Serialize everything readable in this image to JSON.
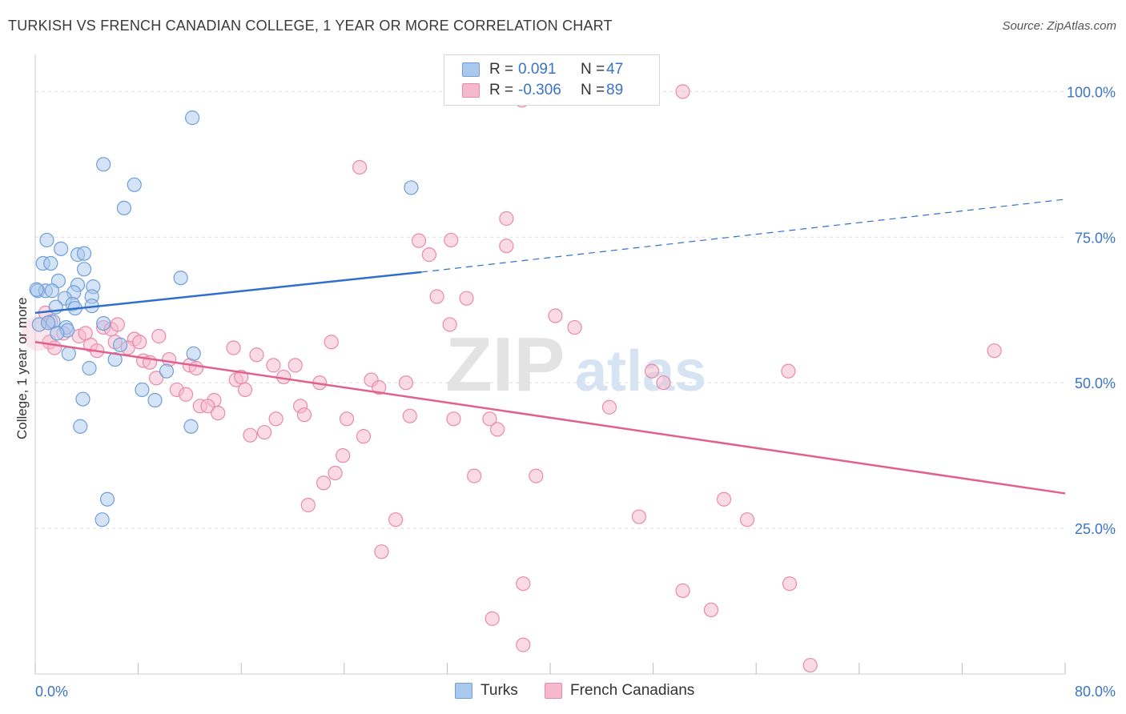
{
  "header": {
    "title": "TURKISH VS FRENCH CANADIAN COLLEGE, 1 YEAR OR MORE CORRELATION CHART",
    "source": "Source: ZipAtlas.com"
  },
  "legend": {
    "rows": [
      {
        "r_label": "R =",
        "r_value": "0.091",
        "n_label": "N =",
        "n_value": "47"
      },
      {
        "r_label": "R =",
        "r_value": "-0.306",
        "n_label": "N =",
        "n_value": "89"
      }
    ]
  },
  "bottom_legend": {
    "turks": "Turks",
    "french": "French Canadians"
  },
  "watermark": {
    "zip": "ZIP",
    "atlas": "atlas"
  },
  "colors": {
    "blue_fill": "#aac8ee",
    "blue_stroke": "#6f9fd8",
    "blue_line": "#2f6fcc",
    "pink_fill": "#f5b8cc",
    "pink_stroke": "#e88aa8",
    "pink_line": "#e0608e",
    "tick_text": "#3a73c8",
    "grid": "#dddddd"
  },
  "chart_data": {
    "type": "scatter",
    "title": "TURKISH VS FRENCH CANADIAN COLLEGE, 1 YEAR OR MORE CORRELATION CHART",
    "xlabel": "",
    "ylabel": "College, 1 year or more",
    "xlim": [
      0,
      80
    ],
    "ylim": [
      0,
      105
    ],
    "x_tick_labels": [
      "0.0%",
      "80.0%"
    ],
    "y_ticks": [
      25,
      50,
      75,
      100
    ],
    "y_tick_labels": [
      "25.0%",
      "50.0%",
      "75.0%",
      "100.0%"
    ],
    "series": [
      {
        "name": "Turks",
        "r": 0.091,
        "n": 47,
        "trend": {
          "x0": 0,
          "y0": 62,
          "x1": 30,
          "y1": 69,
          "dash_to_x": 80,
          "dash_to_y": 81.5
        },
        "points": [
          [
            12.2,
            95.5
          ],
          [
            5.3,
            87.5
          ],
          [
            7.7,
            84
          ],
          [
            29.2,
            83.5
          ],
          [
            6.9,
            80
          ],
          [
            0.9,
            74.5
          ],
          [
            2.0,
            73
          ],
          [
            3.3,
            72
          ],
          [
            3.8,
            72.2
          ],
          [
            0.6,
            70.5
          ],
          [
            1.2,
            70.5
          ],
          [
            3.8,
            69.5
          ],
          [
            11.3,
            68
          ],
          [
            1.8,
            67.5
          ],
          [
            3.3,
            66.8
          ],
          [
            4.5,
            66.5
          ],
          [
            0.2,
            65.8
          ],
          [
            0.8,
            65.8
          ],
          [
            1.3,
            65.8
          ],
          [
            3.0,
            65.5
          ],
          [
            4.4,
            64.8
          ],
          [
            2.3,
            64.5
          ],
          [
            2.9,
            63.5
          ],
          [
            1.6,
            63
          ],
          [
            3.1,
            62.8
          ],
          [
            4.4,
            63.2
          ],
          [
            0.3,
            60
          ],
          [
            1.4,
            60.5
          ],
          [
            5.3,
            60.2
          ],
          [
            2.4,
            59.5
          ],
          [
            2.5,
            59
          ],
          [
            1.7,
            58.5
          ],
          [
            6.6,
            56.5
          ],
          [
            2.6,
            55.0
          ],
          [
            12.3,
            55
          ],
          [
            6.2,
            54
          ],
          [
            4.2,
            52.5
          ],
          [
            10.2,
            52
          ],
          [
            8.3,
            48.8
          ],
          [
            3.7,
            47.2
          ],
          [
            9.3,
            47
          ],
          [
            3.5,
            42.5
          ],
          [
            12.1,
            42.5
          ],
          [
            5.6,
            30
          ],
          [
            5.2,
            26.5
          ],
          [
            0.1,
            66
          ],
          [
            1.0,
            60.3
          ]
        ]
      },
      {
        "name": "French Canadians",
        "r": -0.306,
        "n": 89,
        "trend": {
          "x0": 0,
          "y0": 57,
          "x1": 80,
          "y1": 31
        },
        "points": [
          [
            50.3,
            100
          ],
          [
            37.8,
            98.5
          ],
          [
            25.2,
            87
          ],
          [
            36.6,
            78.2
          ],
          [
            29.8,
            74.4
          ],
          [
            32.3,
            74.5
          ],
          [
            36.6,
            73.5
          ],
          [
            30.6,
            72
          ],
          [
            31.2,
            64.8
          ],
          [
            33.5,
            64.5
          ],
          [
            40.4,
            61.5
          ],
          [
            32.2,
            60
          ],
          [
            0.8,
            62
          ],
          [
            5.3,
            59.5
          ],
          [
            41.9,
            59.5
          ],
          [
            5.9,
            59.2
          ],
          [
            9.6,
            58
          ],
          [
            3.4,
            58
          ],
          [
            7.7,
            57.5
          ],
          [
            1.1,
            57
          ],
          [
            6.2,
            57
          ],
          [
            23.0,
            57
          ],
          [
            4.3,
            56.5
          ],
          [
            1.5,
            56
          ],
          [
            7.2,
            56
          ],
          [
            15.4,
            56
          ],
          [
            74.5,
            55.5
          ],
          [
            4.8,
            55.5
          ],
          [
            17.2,
            54.8
          ],
          [
            8.4,
            53.8
          ],
          [
            10.4,
            54
          ],
          [
            8.9,
            53.5
          ],
          [
            12.0,
            53
          ],
          [
            18.5,
            53
          ],
          [
            20.2,
            53
          ],
          [
            12.5,
            52.5
          ],
          [
            47.9,
            52
          ],
          [
            58.5,
            52
          ],
          [
            19.3,
            51
          ],
          [
            9.4,
            50.8
          ],
          [
            15.6,
            50.5
          ],
          [
            16.0,
            51
          ],
          [
            26.1,
            50.5
          ],
          [
            22.1,
            50
          ],
          [
            28.8,
            50
          ],
          [
            48.8,
            50
          ],
          [
            26.7,
            49.2
          ],
          [
            11.0,
            48.8
          ],
          [
            16.3,
            48.8
          ],
          [
            11.7,
            48
          ],
          [
            13.9,
            47
          ],
          [
            29.1,
            44.3
          ],
          [
            12.8,
            46
          ],
          [
            13.4,
            46
          ],
          [
            20.6,
            46
          ],
          [
            44.6,
            45.8
          ],
          [
            14.2,
            44.8
          ],
          [
            20.9,
            44.5
          ],
          [
            18.7,
            43.8
          ],
          [
            24.2,
            43.8
          ],
          [
            32.5,
            43.8
          ],
          [
            35.3,
            43.8
          ],
          [
            35.9,
            42
          ],
          [
            16.7,
            41
          ],
          [
            17.8,
            41.5
          ],
          [
            25.5,
            40.8
          ],
          [
            23.9,
            37.5
          ],
          [
            23.3,
            34.5
          ],
          [
            34.1,
            34
          ],
          [
            38.9,
            34
          ],
          [
            22.4,
            32.8
          ],
          [
            53.5,
            30
          ],
          [
            21.2,
            29
          ],
          [
            46.9,
            27
          ],
          [
            55.3,
            26.5
          ],
          [
            28.0,
            26.5
          ],
          [
            26.9,
            21
          ],
          [
            37.9,
            15.5
          ],
          [
            58.6,
            15.5
          ],
          [
            50.3,
            14.3
          ],
          [
            52.5,
            11
          ],
          [
            35.5,
            9.5
          ],
          [
            37.9,
            5
          ],
          [
            60.2,
            1.5
          ],
          [
            1.2,
            60.5
          ],
          [
            2.2,
            58.5
          ],
          [
            6.4,
            60
          ],
          [
            8.1,
            57
          ],
          [
            3.9,
            58.5
          ]
        ]
      }
    ]
  }
}
